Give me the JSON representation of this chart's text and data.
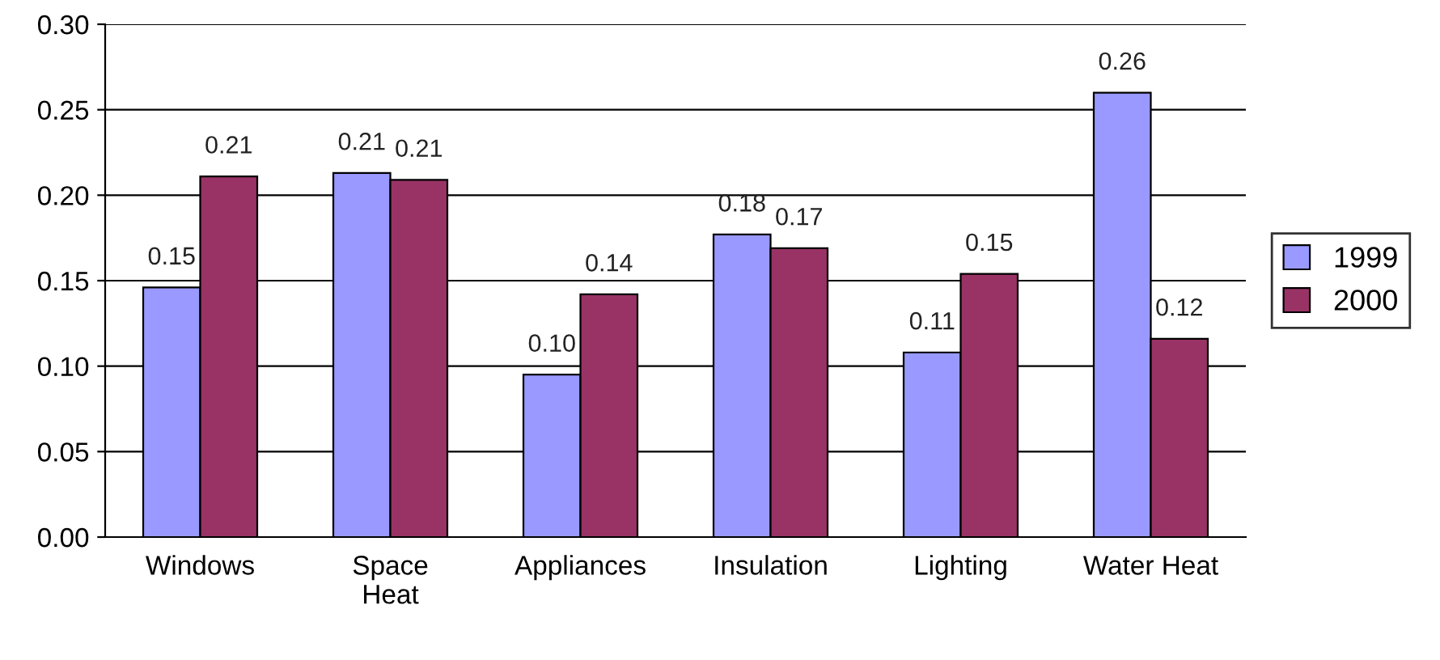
{
  "chart_data": {
    "type": "bar",
    "categories": [
      "Windows",
      "Space\nHeat",
      "Appliances",
      "Insulation",
      "Lighting",
      "Water Heat"
    ],
    "series": [
      {
        "name": "1999",
        "color": "#9999ff",
        "values": [
          0.146,
          0.213,
          0.095,
          0.177,
          0.108,
          0.26
        ],
        "value_labels": [
          "0.15",
          "0.21",
          "0.10",
          "0.18",
          "0.11",
          "0.26"
        ]
      },
      {
        "name": "2000",
        "color": "#993366",
        "values": [
          0.211,
          0.209,
          0.142,
          0.169,
          0.154,
          0.116
        ],
        "value_labels": [
          "0.21",
          "0.21",
          "0.14",
          "0.17",
          "0.15",
          "0.12"
        ]
      }
    ],
    "ylim": [
      0,
      0.3
    ],
    "yticks": [
      {
        "value": 0,
        "label": "0.00"
      },
      {
        "value": 0.05,
        "label": "0.05"
      },
      {
        "value": 0.1,
        "label": "0.10"
      },
      {
        "value": 0.15,
        "label": "0.15"
      },
      {
        "value": 0.2,
        "label": "0.20"
      },
      {
        "value": 0.25,
        "label": "0.25"
      },
      {
        "value": 0.3,
        "label": "0.30"
      }
    ],
    "grid": "y",
    "legend": "right"
  }
}
